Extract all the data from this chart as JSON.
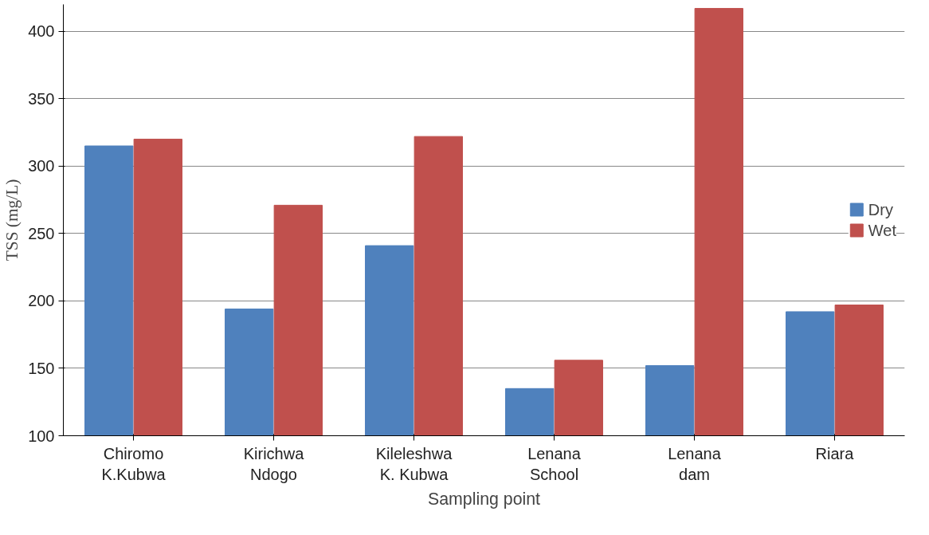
{
  "chart_data": {
    "type": "bar",
    "xlabel": "Sampling point",
    "ylabel": "TSS (mg/L)",
    "categories": [
      "Chiromo\nK.Kubwa",
      "Kirichwa\nNdogo",
      "Kileleshwa\nK. Kubwa",
      "Lenana\nSchool",
      "Lenana\ndam",
      "Riara"
    ],
    "series": [
      {
        "name": "Dry",
        "color": "#4f81bd",
        "values": [
          315,
          194,
          241,
          135,
          152,
          192
        ]
      },
      {
        "name": "Wet",
        "color": "#c0504d",
        "values": [
          320,
          271,
          322,
          156,
          417,
          197
        ]
      }
    ],
    "ylim": [
      100,
      420
    ],
    "yticks": [
      100,
      150,
      200,
      250,
      300,
      350,
      400
    ],
    "grid": "y",
    "legend": "right"
  }
}
